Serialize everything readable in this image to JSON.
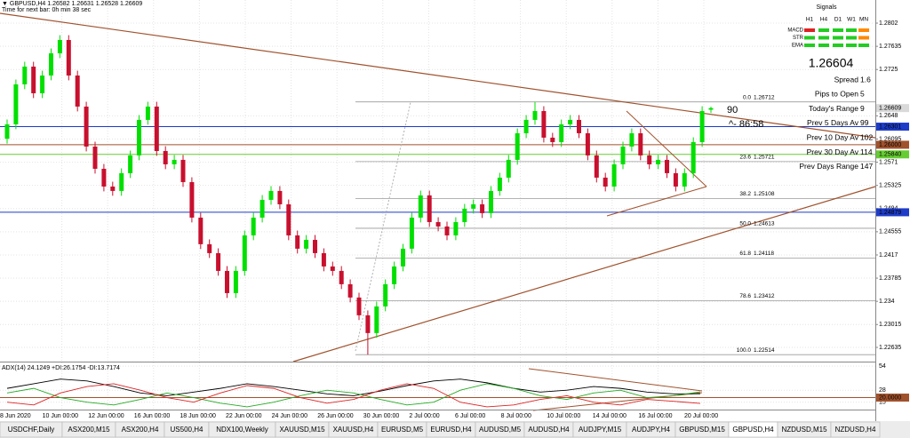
{
  "chart_data": {
    "type": "candlestick",
    "symbol_line": "▼ GBPUSD,H4  1.26582 1.26631 1.26528 1.26609",
    "timer_line": "Time for next bar: 0h min 38 sec",
    "ylim": [
      1.22399,
      1.28404
    ],
    "yticks": [
      1.2802,
      1.27635,
      1.2725,
      1.2648,
      1.26095,
      1.2571,
      1.25325,
      1.2494,
      1.24555,
      1.2417,
      1.23785,
      1.234,
      1.23015,
      1.22635
    ],
    "grid": true,
    "up_color": "#00e000",
    "down_color": "#c8102e",
    "open": [
      1.261,
      1.26339,
      1.27003,
      1.27298,
      1.26855,
      1.2715,
      1.27519,
      1.2774,
      1.2715,
      1.26634,
      1.2597,
      1.25601,
      1.25306,
      1.25233,
      1.25528,
      1.25823,
      1.26413,
      1.26634,
      1.25896,
      1.25675,
      1.25749,
      1.2538,
      1.2479,
      1.24348,
      1.242,
      1.23905,
      1.23536,
      1.23905,
      1.24495,
      1.2479,
      1.25085,
      1.25233,
      1.25011,
      1.24495,
      1.24274,
      1.24421,
      1.242,
      1.23979,
      1.23905,
      1.23684,
      1.23463,
      1.23168,
      1.22873,
      1.23315,
      1.23684,
      1.23979,
      1.24274,
      1.2479,
      1.25159,
      1.24716,
      1.24643,
      1.24495,
      1.24716,
      1.24938,
      1.25011,
      1.24864,
      1.25233,
      1.25454,
      1.25749,
      1.26191,
      1.26413,
      1.2656,
      1.26118,
      1.26044,
      1.26339,
      1.26413,
      1.26191,
      1.25823,
      1.25454,
      1.25306,
      1.25675,
      1.2597,
      1.26191,
      1.25823,
      1.25675,
      1.25749,
      1.25528,
      1.25306,
      1.25528,
      1.26044,
      1.26582
    ],
    "high": [
      1.26419,
      1.27083,
      1.27378,
      1.27378,
      1.2723,
      1.27599,
      1.2782,
      1.2782,
      1.2723,
      1.26714,
      1.2605,
      1.25681,
      1.25386,
      1.25608,
      1.25903,
      1.26493,
      1.26714,
      1.26714,
      1.25976,
      1.25829,
      1.25829,
      1.2546,
      1.2487,
      1.24428,
      1.2428,
      1.23985,
      1.23985,
      1.24575,
      1.2487,
      1.25165,
      1.25313,
      1.25313,
      1.25091,
      1.24575,
      1.24501,
      1.24501,
      1.2428,
      1.24059,
      1.23985,
      1.23764,
      1.23543,
      1.23248,
      1.23395,
      1.23764,
      1.24059,
      1.24354,
      1.2487,
      1.25239,
      1.25239,
      1.24796,
      1.24723,
      1.24796,
      1.25018,
      1.25091,
      1.25091,
      1.25313,
      1.25534,
      1.25829,
      1.26271,
      1.26493,
      1.26712,
      1.2664,
      1.26198,
      1.26419,
      1.26493,
      1.26493,
      1.26271,
      1.25903,
      1.25534,
      1.25755,
      1.2605,
      1.26271,
      1.26271,
      1.25903,
      1.25829,
      1.25829,
      1.25608,
      1.25608,
      1.26124,
      1.2664,
      1.26631
    ],
    "low": [
      1.2602,
      1.26259,
      1.26923,
      1.26775,
      1.26775,
      1.2707,
      1.27439,
      1.2707,
      1.26554,
      1.2589,
      1.25521,
      1.25226,
      1.25153,
      1.25153,
      1.25448,
      1.25743,
      1.26333,
      1.25816,
      1.25595,
      1.25595,
      1.253,
      1.2471,
      1.24268,
      1.2412,
      1.23825,
      1.23456,
      1.23456,
      1.23825,
      1.24415,
      1.2471,
      1.25005,
      1.24931,
      1.24415,
      1.24194,
      1.24194,
      1.2412,
      1.23899,
      1.23825,
      1.23604,
      1.23383,
      1.23088,
      1.22514,
      1.22793,
      1.23235,
      1.23604,
      1.23899,
      1.24194,
      1.2471,
      1.24636,
      1.24563,
      1.24415,
      1.24415,
      1.24636,
      1.24858,
      1.24784,
      1.24784,
      1.25153,
      1.25374,
      1.25669,
      1.26111,
      1.26333,
      1.26038,
      1.25964,
      1.25964,
      1.26259,
      1.26111,
      1.25743,
      1.25374,
      1.25226,
      1.25226,
      1.25595,
      1.2589,
      1.25743,
      1.25595,
      1.25595,
      1.25448,
      1.25226,
      1.25226,
      1.25448,
      1.25964,
      1.26528
    ],
    "close": [
      1.26339,
      1.27003,
      1.27298,
      1.26855,
      1.2715,
      1.27519,
      1.2774,
      1.2715,
      1.26634,
      1.2597,
      1.25601,
      1.25306,
      1.25233,
      1.25528,
      1.25823,
      1.26413,
      1.26634,
      1.25896,
      1.25675,
      1.25749,
      1.2538,
      1.2479,
      1.24348,
      1.242,
      1.23905,
      1.23536,
      1.23905,
      1.24495,
      1.2479,
      1.25085,
      1.25233,
      1.25011,
      1.24495,
      1.24274,
      1.24421,
      1.242,
      1.23979,
      1.23905,
      1.23684,
      1.23463,
      1.23168,
      1.22873,
      1.23315,
      1.23684,
      1.23979,
      1.24274,
      1.2479,
      1.25159,
      1.24716,
      1.24643,
      1.24495,
      1.24716,
      1.24938,
      1.25011,
      1.24864,
      1.25233,
      1.25454,
      1.25749,
      1.26191,
      1.26413,
      1.2656,
      1.26118,
      1.26044,
      1.26339,
      1.26413,
      1.26191,
      1.25823,
      1.25454,
      1.25306,
      1.25675,
      1.2597,
      1.26191,
      1.25823,
      1.25675,
      1.25749,
      1.25528,
      1.25306,
      1.25528,
      1.26044,
      1.2656,
      1.26609
    ],
    "price_tags": [
      {
        "value": 1.26609,
        "label": "1.26609",
        "color": "#d9d9d9",
        "text_color": "#000000"
      },
      {
        "value": 1.26301,
        "label": "1.26301",
        "color": "#1e3cc8",
        "text_color": "#ffffff"
      },
      {
        "value": 1.26,
        "label": "1.26000",
        "color": "#a0522d",
        "text_color": "#ffffff"
      },
      {
        "value": 1.2584,
        "label": "1.25840",
        "color": "#66cc33",
        "text_color": "#ffffff"
      },
      {
        "value": 1.24879,
        "label": "1.24879",
        "color": "#1e3cc8",
        "text_color": "#ffffff"
      }
    ],
    "fib_levels": [
      {
        "level": "0.0",
        "price": 1.26712
      },
      {
        "level": "23.6",
        "price": 1.25721
      },
      {
        "level": "38.2",
        "price": 1.25108
      },
      {
        "level": "50.0",
        "price": 1.24613
      },
      {
        "level": "61.8",
        "price": 1.24118
      },
      {
        "level": "78.6",
        "price": 1.23412
      },
      {
        "level": "100.0",
        "price": 1.22514
      }
    ],
    "annotations": [
      "90",
      "^- 86:58"
    ],
    "x_labels": [
      "8 Jun 2020",
      "10 Jun 00:00",
      "12 Jun 00:00",
      "16 Jun 00:00",
      "18 Jun 00:00",
      "22 Jun 00:00",
      "24 Jun 00:00",
      "26 Jun 00:00",
      "30 Jun 00:00",
      "2 Jul 00:00",
      "6 Jul 00:00",
      "8 Jul 00:00",
      "10 Jul 00:00",
      "14 Jul 00:00",
      "16 Jul 00:00",
      "20 Jul 00:00"
    ],
    "info_panel": {
      "title": "Signals",
      "timeframes": [
        "H1",
        "H4",
        "D1",
        "W1",
        "MN"
      ],
      "indicators": [
        "MACD",
        "STR",
        "EMA"
      ],
      "price": "1.26604",
      "rows": [
        {
          "label": "Spread",
          "value": 1.6
        },
        {
          "label": "Pips to Open",
          "value": 5
        },
        {
          "label": "Today's Range",
          "value": 9
        },
        {
          "label": "Prev 5 Days Av",
          "value": 99
        },
        {
          "label": "Prev 10 Day Av",
          "value": 102
        },
        {
          "label": "Prev 30 Day Av",
          "value": 114
        },
        {
          "label": "Prev Days Range",
          "value": 147
        }
      ]
    },
    "indicator": {
      "type": "line",
      "title": "ADX(14) 24.1249 +DI:26.1754 -DI:13.7174",
      "ylim": [
        8,
        58
      ],
      "yticks": [
        54,
        28,
        15
      ],
      "level": {
        "value": 20,
        "label": "20.0000"
      },
      "series": [
        {
          "name": "ADX",
          "color": "#000000",
          "values": [
            30,
            35,
            40,
            38,
            32,
            25,
            22,
            26,
            30,
            35,
            32,
            28,
            24,
            22,
            27,
            33,
            38,
            40,
            36,
            30,
            26,
            28,
            32,
            30,
            26,
            24,
            24.1249
          ]
        },
        {
          "name": "+DI",
          "color": "#22aa22",
          "values": [
            25,
            30,
            20,
            15,
            12,
            18,
            25,
            20,
            14,
            10,
            15,
            22,
            28,
            25,
            18,
            12,
            15,
            28,
            35,
            30,
            22,
            18,
            25,
            28,
            20,
            22,
            26.1754
          ]
        },
        {
          "name": "-DI",
          "color": "#dd2222",
          "values": [
            15,
            12,
            25,
            32,
            35,
            28,
            20,
            15,
            25,
            33,
            30,
            20,
            14,
            18,
            28,
            35,
            30,
            15,
            10,
            12,
            18,
            22,
            15,
            12,
            18,
            16,
            13.7174
          ]
        }
      ]
    },
    "tabs": [
      "USDCHF,Daily",
      "ASX200,M15",
      "ASX200,H4",
      "US500,H4",
      "NDX100,Weekly",
      "XAUUSD,M15",
      "XAUUSD,H4",
      "EURUSD,M5",
      "EURUSD,H4",
      "AUDUSD,M5",
      "AUDUSD,H4",
      "AUDJPY,M15",
      "AUDJPY,H4",
      "GBPUSD,M15",
      "GBPUSD,H4",
      "NZDUSD,M15",
      "NZDUSD,H4"
    ],
    "active_tab": "GBPUSD,H4"
  }
}
